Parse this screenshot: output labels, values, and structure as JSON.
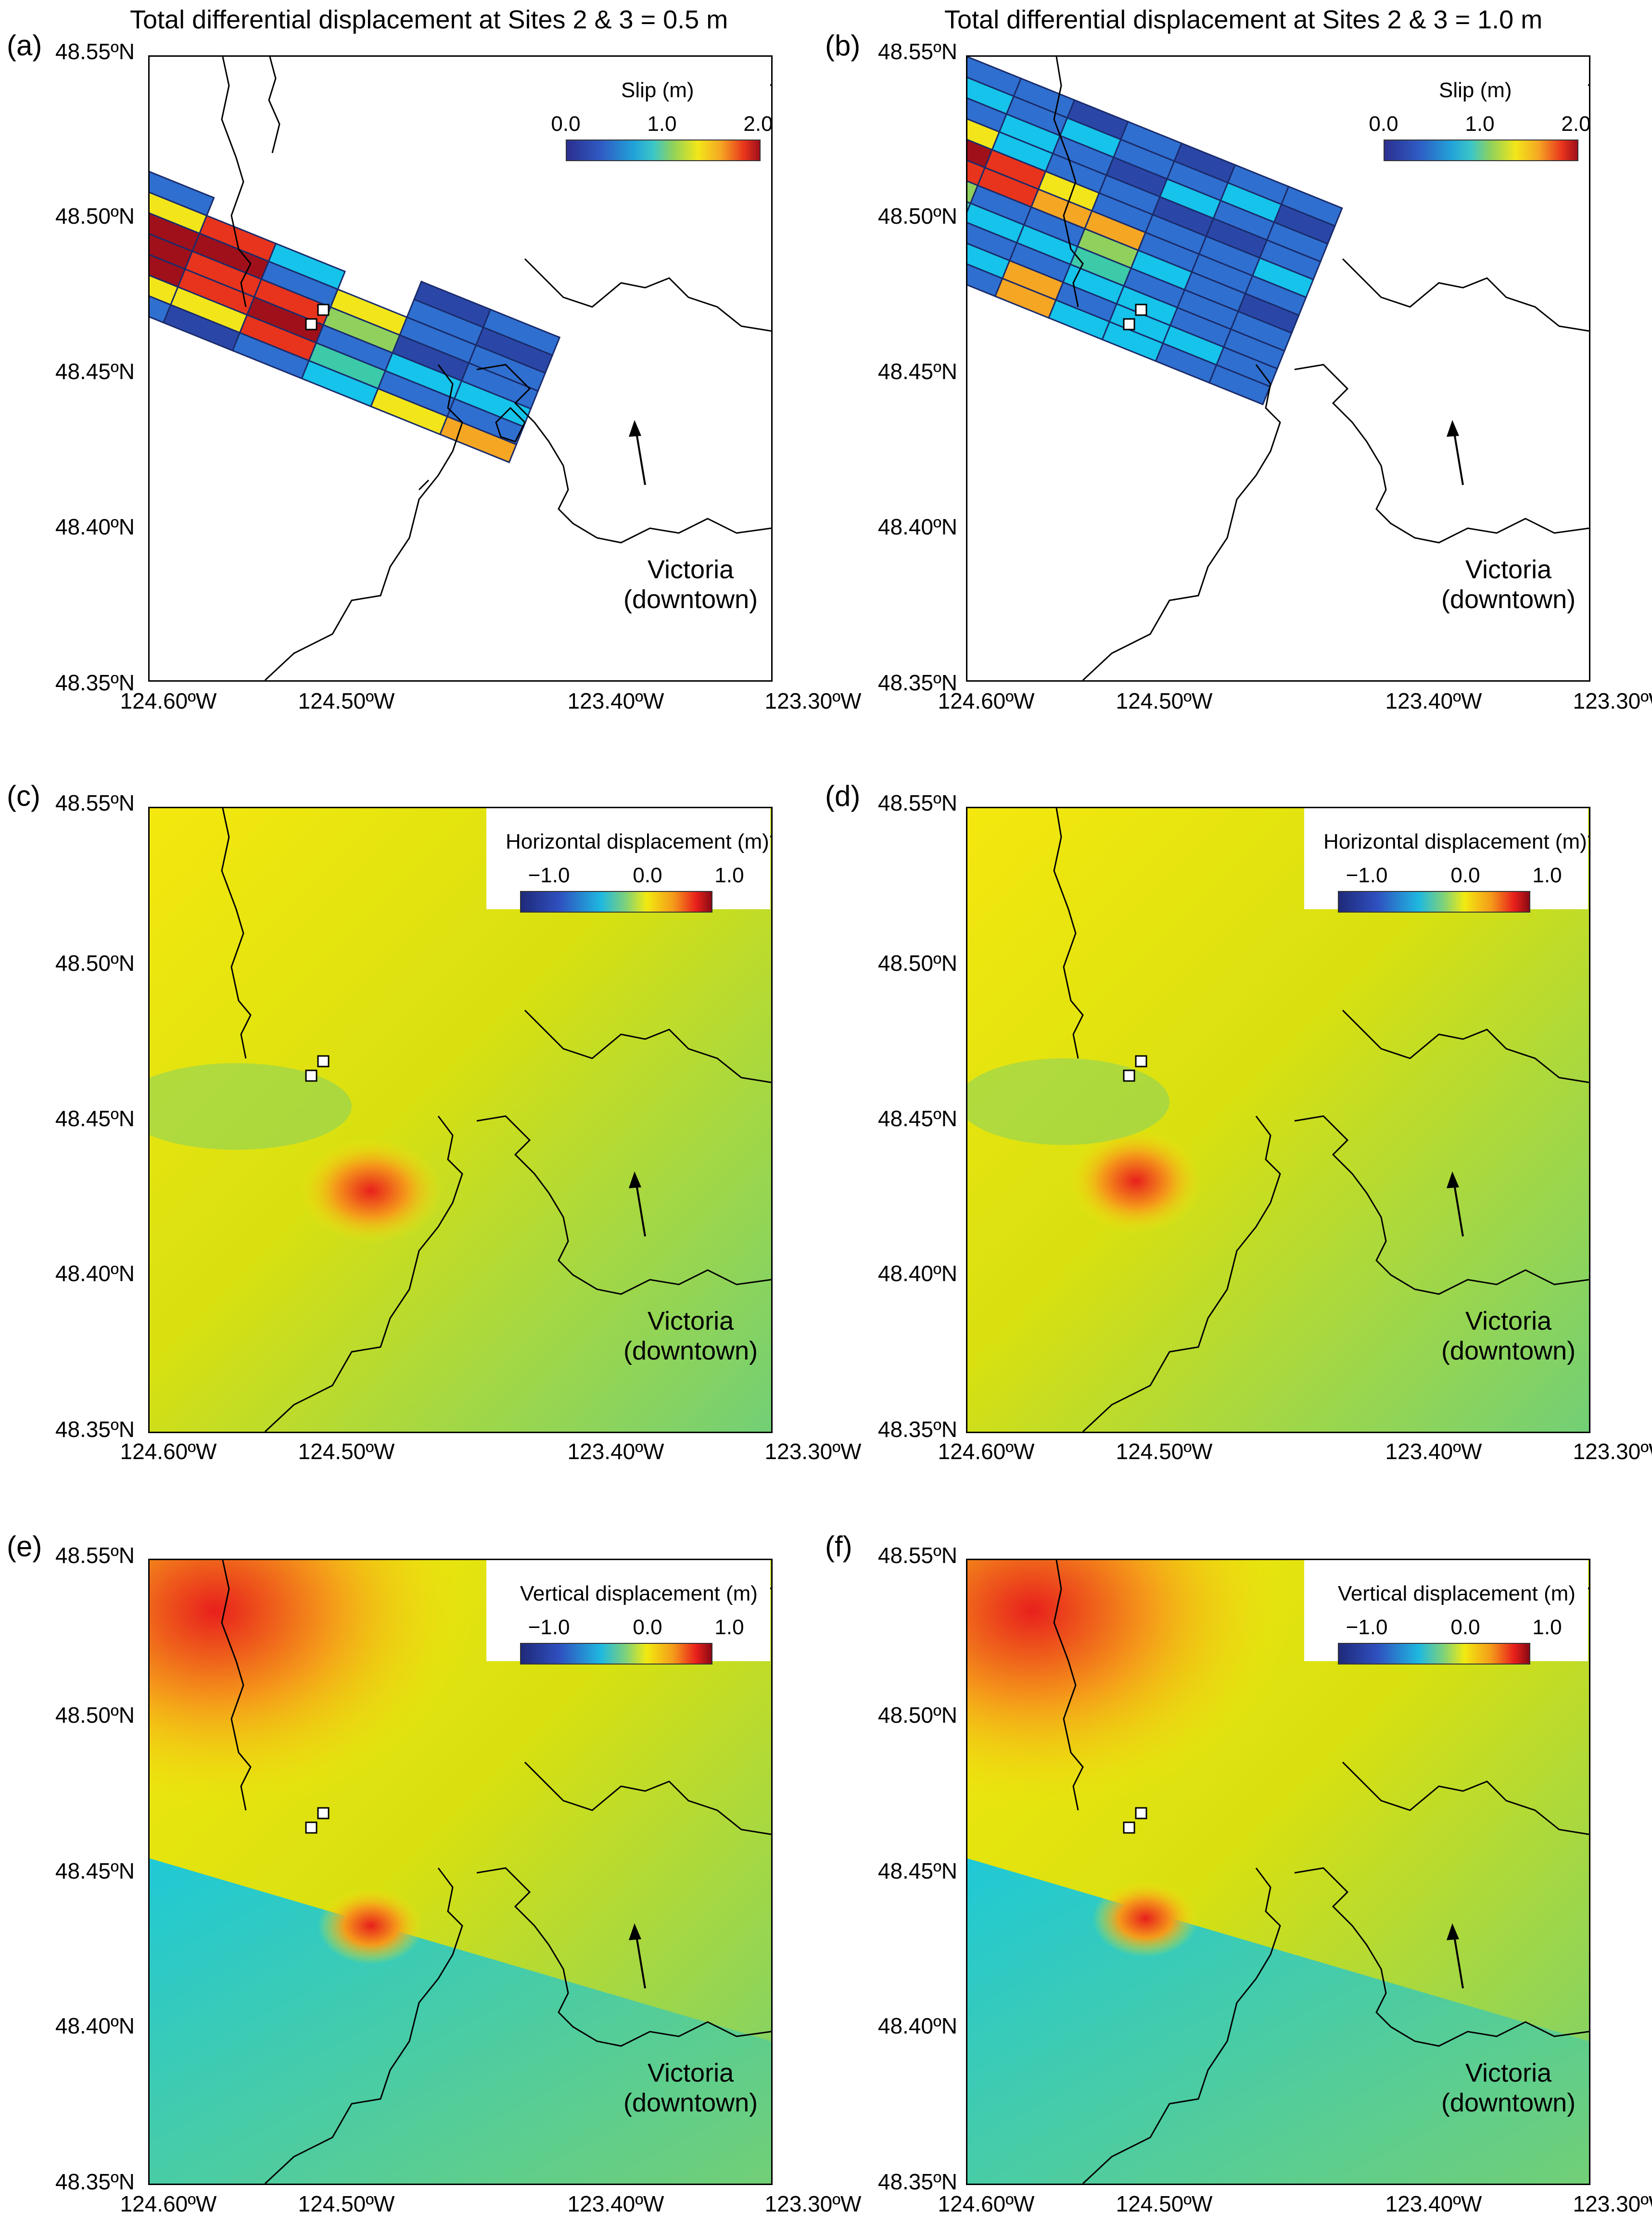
{
  "column_titles": {
    "left": "Total differential displacement at Sites 2 & 3 = 0.5 m",
    "right": "Total differential displacement at Sites 2 & 3 = 1.0 m"
  },
  "y_ticks": [
    "48.55ºN",
    "48.50ºN",
    "48.45ºN",
    "48.40ºN",
    "48.35ºN"
  ],
  "x_ticks": [
    "124.60ºW",
    "124.50ºW",
    "123.40ºW",
    "123.30ºW"
  ],
  "annotation": {
    "line1": "Victoria",
    "line2": "(downtown)"
  },
  "panels": {
    "a": {
      "letter": "(a)",
      "legend_title": "Slip (m)",
      "ticks": [
        "0.0",
        "1.0",
        "2.0"
      ]
    },
    "b": {
      "letter": "(b)",
      "legend_title": "Slip (m)",
      "ticks": [
        "0.0",
        "1.0",
        "2.0"
      ]
    },
    "c": {
      "letter": "(c)",
      "legend_title": "Horizontal displacement (m)",
      "ticks": [
        "−1.0",
        "0.0",
        "1.0"
      ]
    },
    "d": {
      "letter": "(d)",
      "legend_title": "Horizontal displacement (m)",
      "ticks": [
        "−1.0",
        "0.0",
        "1.0"
      ]
    },
    "e": {
      "letter": "(e)",
      "legend_title": "Vertical displacement (m)",
      "ticks": [
        "−1.0",
        "0.0",
        "1.0"
      ]
    },
    "f": {
      "letter": "(f)",
      "legend_title": "Vertical displacement (m)",
      "ticks": [
        "−1.0",
        "0.0",
        "1.0"
      ]
    }
  },
  "colors": {
    "slip_dark_blue": "#2a47a8",
    "slip_blue": "#2f6fd0",
    "slip_cyan": "#16c3ea",
    "slip_teal": "#3ccaa8",
    "slip_green": "#8fd15c",
    "slip_yellow": "#f2e61a",
    "slip_orange": "#f5a623",
    "slip_red": "#e8341c",
    "slip_dark_red": "#a0101a",
    "field_yellow": "#f4e80e",
    "field_green": "#72cf76",
    "field_cyan": "#1fc9d6",
    "field_red": "#e8201c"
  }
}
